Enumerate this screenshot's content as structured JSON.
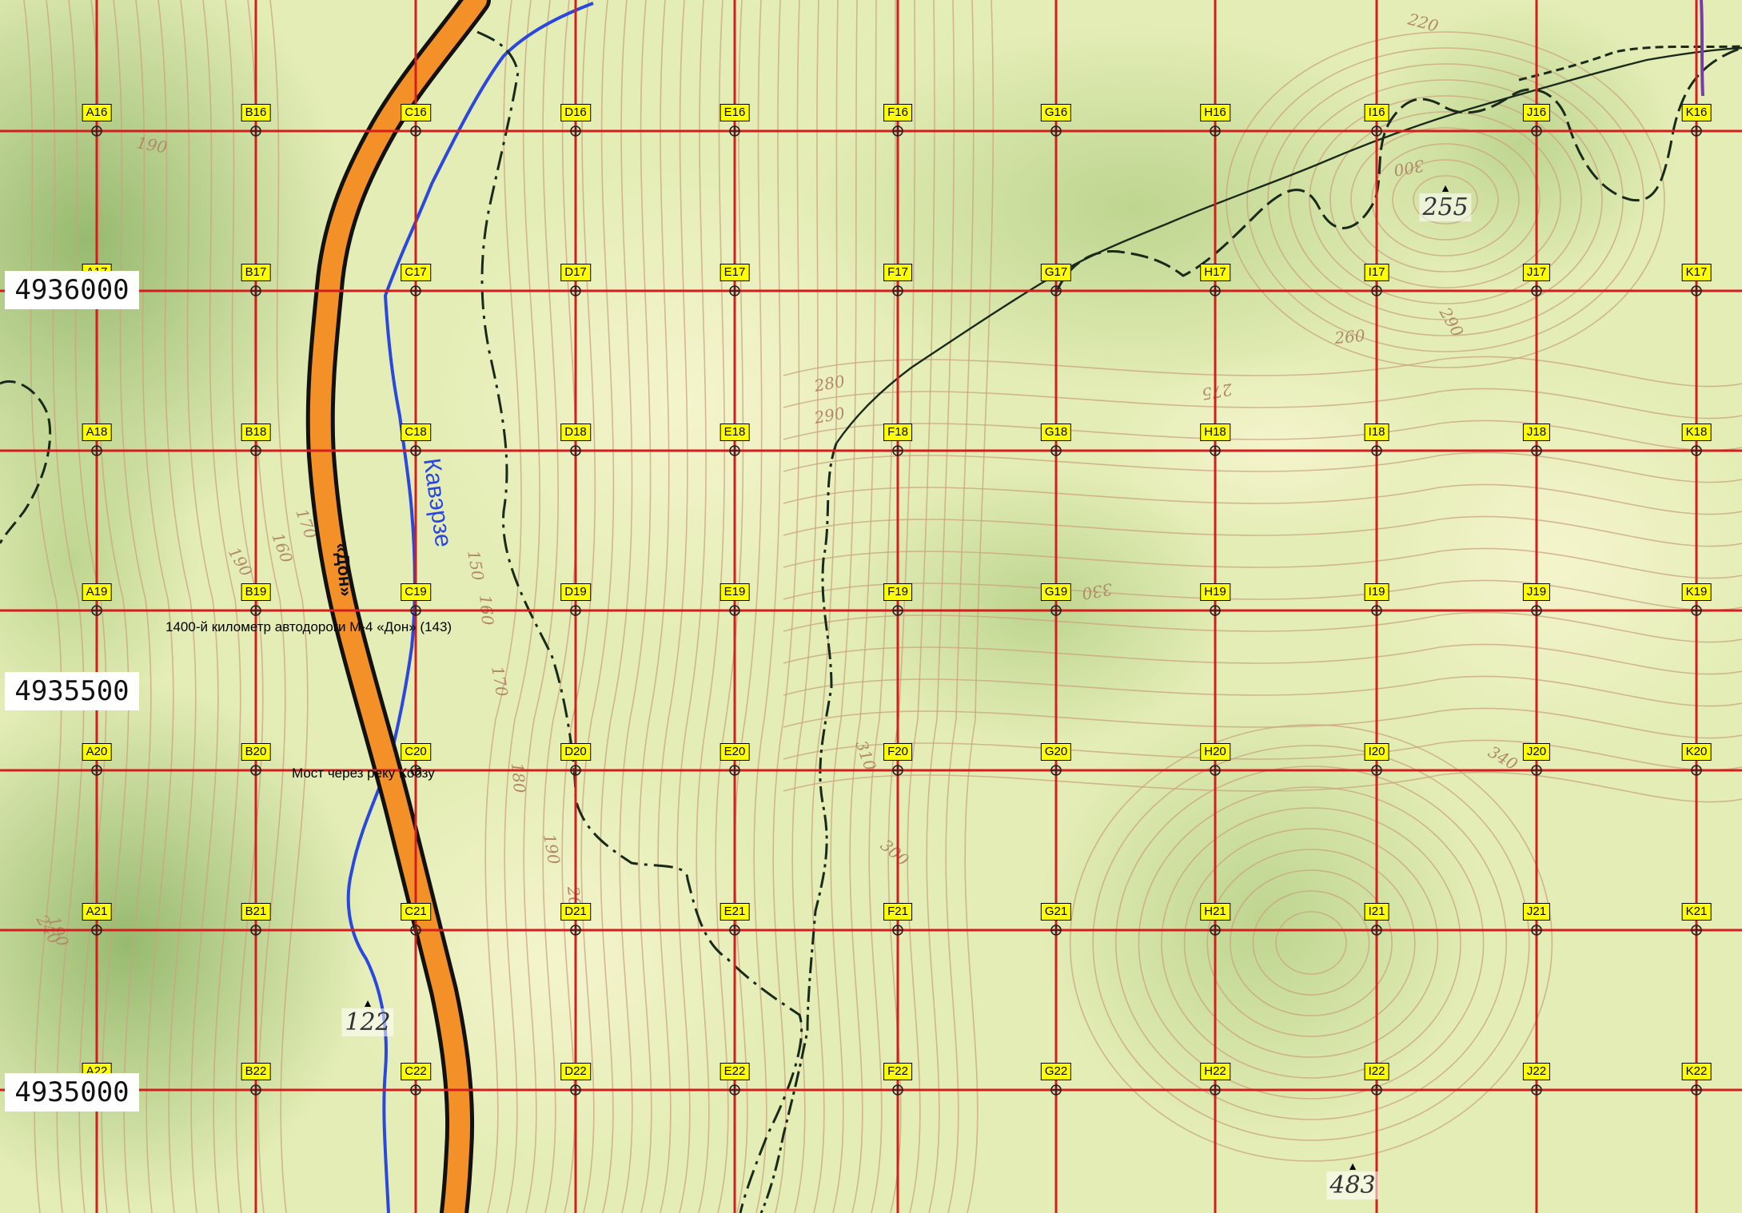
{
  "grid": {
    "columns": [
      "A",
      "B",
      "C",
      "D",
      "E",
      "F",
      "G",
      "H",
      "I",
      "J",
      "K"
    ],
    "rows": [
      "16",
      "17",
      "18",
      "19",
      "20",
      "21",
      "22"
    ]
  },
  "coordinates": {
    "north_4936000": "4936000",
    "north_4935500": "4935500",
    "north_4935000": "4935000"
  },
  "captions": {
    "km_marker": "1400-й километр  автодороги  М-4 «Дон» (143)",
    "bridge": "Мост через реку Кобзу"
  },
  "road_label": "«Дон»",
  "river_label": "Кавэрзе",
  "peaks": {
    "p255": "255",
    "p122": "122",
    "p483": "483"
  },
  "contour_labels": [
    "190",
    "190",
    "260",
    "275",
    "280",
    "290",
    "300",
    "310",
    "330",
    "340",
    "150",
    "160",
    "170",
    "180",
    "190",
    "220",
    "200",
    "300",
    "290",
    "190",
    "160",
    "170",
    "240"
  ],
  "colors": {
    "grid_line": "#d41e1e",
    "label_fill": "#ffff00",
    "road_fill": "#f39028",
    "river": "#2a48e0",
    "contour": "#c8a080",
    "terrain_light": "#eef3c4",
    "terrain_dark": "#9cc072"
  },
  "icons": [
    "peak-triangle-icon",
    "crosshair-icon"
  ]
}
